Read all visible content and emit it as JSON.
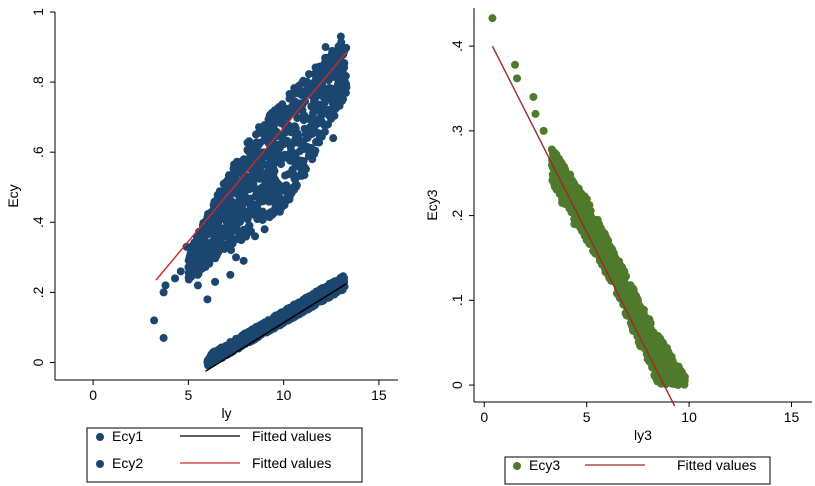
{
  "chart_data": [
    {
      "type": "scatter",
      "xlabel": "ly",
      "ylabel": "Ecy",
      "xlim": [
        -2,
        16
      ],
      "ylim": [
        -0.05,
        1.0
      ],
      "xticks": [
        0,
        5,
        10,
        15
      ],
      "yticks": [
        0,
        0.2,
        0.4,
        0.6,
        0.8,
        1
      ],
      "ytick_labels": [
        "0",
        ".2",
        ".4",
        ".6",
        ".8",
        "1"
      ],
      "grid": false,
      "legend_position": "bottom",
      "colors": {
        "marker": "#1a4670",
        "fit1": "#000000",
        "fit2": "#cc2a2a"
      },
      "series": [
        {
          "name": "Ecy1",
          "kind": "scatter",
          "band": {
            "x_range": [
              6.0,
              13.2
            ],
            "lower": [
              [
                6.0,
                -0.01
              ],
              [
                13.2,
                0.21
              ]
            ],
            "upper": [
              [
                6.0,
                0.02
              ],
              [
                13.2,
                0.25
              ]
            ]
          },
          "points": [
            [
              6.0,
              0.0
            ],
            [
              6.5,
              0.01
            ],
            [
              7.0,
              0.04
            ],
            [
              8.0,
              0.06
            ],
            [
              9.5,
              0.11
            ],
            [
              11.0,
              0.16
            ],
            [
              12.5,
              0.22
            ],
            [
              13.1,
              0.24
            ]
          ]
        },
        {
          "name": "Ecy2",
          "kind": "scatter",
          "band": {
            "x_range": [
              5.0,
              13.3
            ],
            "lower": [
              [
                5.0,
                0.23
              ],
              [
                8.0,
                0.35
              ],
              [
                10.5,
                0.47
              ],
              [
                13.2,
                0.76
              ]
            ],
            "upper": [
              [
                5.0,
                0.32
              ],
              [
                8.0,
                0.63
              ],
              [
                10.5,
                0.78
              ],
              [
                13.3,
                0.93
              ]
            ]
          },
          "points": [
            [
              3.2,
              0.12
            ],
            [
              3.7,
              0.07
            ],
            [
              3.7,
              0.2
            ],
            [
              3.8,
              0.22
            ],
            [
              4.3,
              0.24
            ],
            [
              4.6,
              0.26
            ],
            [
              4.9,
              0.33
            ],
            [
              5.5,
              0.22
            ],
            [
              6.0,
              0.18
            ],
            [
              6.4,
              0.23
            ],
            [
              7.2,
              0.25
            ],
            [
              7.5,
              0.3
            ],
            [
              7.9,
              0.29
            ],
            [
              8.5,
              0.36
            ],
            [
              9.0,
              0.38
            ],
            [
              9.8,
              0.43
            ],
            [
              10.2,
              0.48
            ],
            [
              11.5,
              0.58
            ],
            [
              12.6,
              0.64
            ],
            [
              13.0,
              0.93
            ],
            [
              12.2,
              0.9
            ]
          ]
        },
        {
          "name": "Fitted values",
          "kind": "line",
          "color": "#000000",
          "x": [
            5.9,
            13.3
          ],
          "y": [
            -0.025,
            0.225
          ]
        },
        {
          "name": "Fitted values",
          "kind": "line",
          "color": "#cc2a2a",
          "x": [
            3.3,
            13.3
          ],
          "y": [
            0.235,
            0.885
          ]
        }
      ],
      "legend": [
        {
          "label": "Ecy1",
          "kind": "marker",
          "color": "#1a4670"
        },
        {
          "label": "Fitted values",
          "kind": "line",
          "color": "#000000"
        },
        {
          "label": "Ecy2",
          "kind": "marker",
          "color": "#1a4670"
        },
        {
          "label": "Fitted values",
          "kind": "line",
          "color": "#cc2a2a"
        }
      ]
    },
    {
      "type": "scatter",
      "xlabel": "ly3",
      "ylabel": "Ecy3",
      "xlim": [
        -0.5,
        16
      ],
      "ylim": [
        -0.02,
        0.445
      ],
      "xticks": [
        0,
        5,
        10,
        15
      ],
      "yticks": [
        0,
        0.1,
        0.2,
        0.3,
        0.4
      ],
      "ytick_labels": [
        "0",
        ".1",
        ".2",
        ".3",
        ".4"
      ],
      "grid": false,
      "legend_position": "bottom",
      "colors": {
        "marker": "#4f7a2b",
        "fit": "#9b2a2a"
      },
      "series": [
        {
          "name": "Ecy3",
          "kind": "scatter",
          "band": {
            "x_range": [
              3.3,
              9.8
            ],
            "lower": [
              [
                3.3,
                0.24
              ],
              [
                6.0,
                0.13
              ],
              [
                8.5,
                0.0
              ],
              [
                9.8,
                0.0
              ]
            ],
            "upper": [
              [
                3.3,
                0.28
              ],
              [
                5.0,
                0.22
              ],
              [
                8.0,
                0.08
              ],
              [
                9.8,
                0.01
              ]
            ]
          },
          "points": [
            [
              0.4,
              0.433
            ],
            [
              1.5,
              0.378
            ],
            [
              1.6,
              0.362
            ],
            [
              2.4,
              0.34
            ],
            [
              2.5,
              0.32
            ],
            [
              2.9,
              0.3
            ],
            [
              3.3,
              0.278
            ],
            [
              3.6,
              0.265
            ],
            [
              3.8,
              0.215
            ],
            [
              4.4,
              0.19
            ]
          ]
        },
        {
          "name": "Fitted values",
          "kind": "line",
          "color": "#9b2a2a",
          "x": [
            0.4,
            9.3
          ],
          "y": [
            0.4,
            -0.025
          ]
        }
      ],
      "legend": [
        {
          "label": "Ecy3",
          "kind": "marker",
          "color": "#4f7a2b"
        },
        {
          "label": "Fitted values",
          "kind": "line",
          "color": "#9b2a2a"
        }
      ]
    }
  ]
}
